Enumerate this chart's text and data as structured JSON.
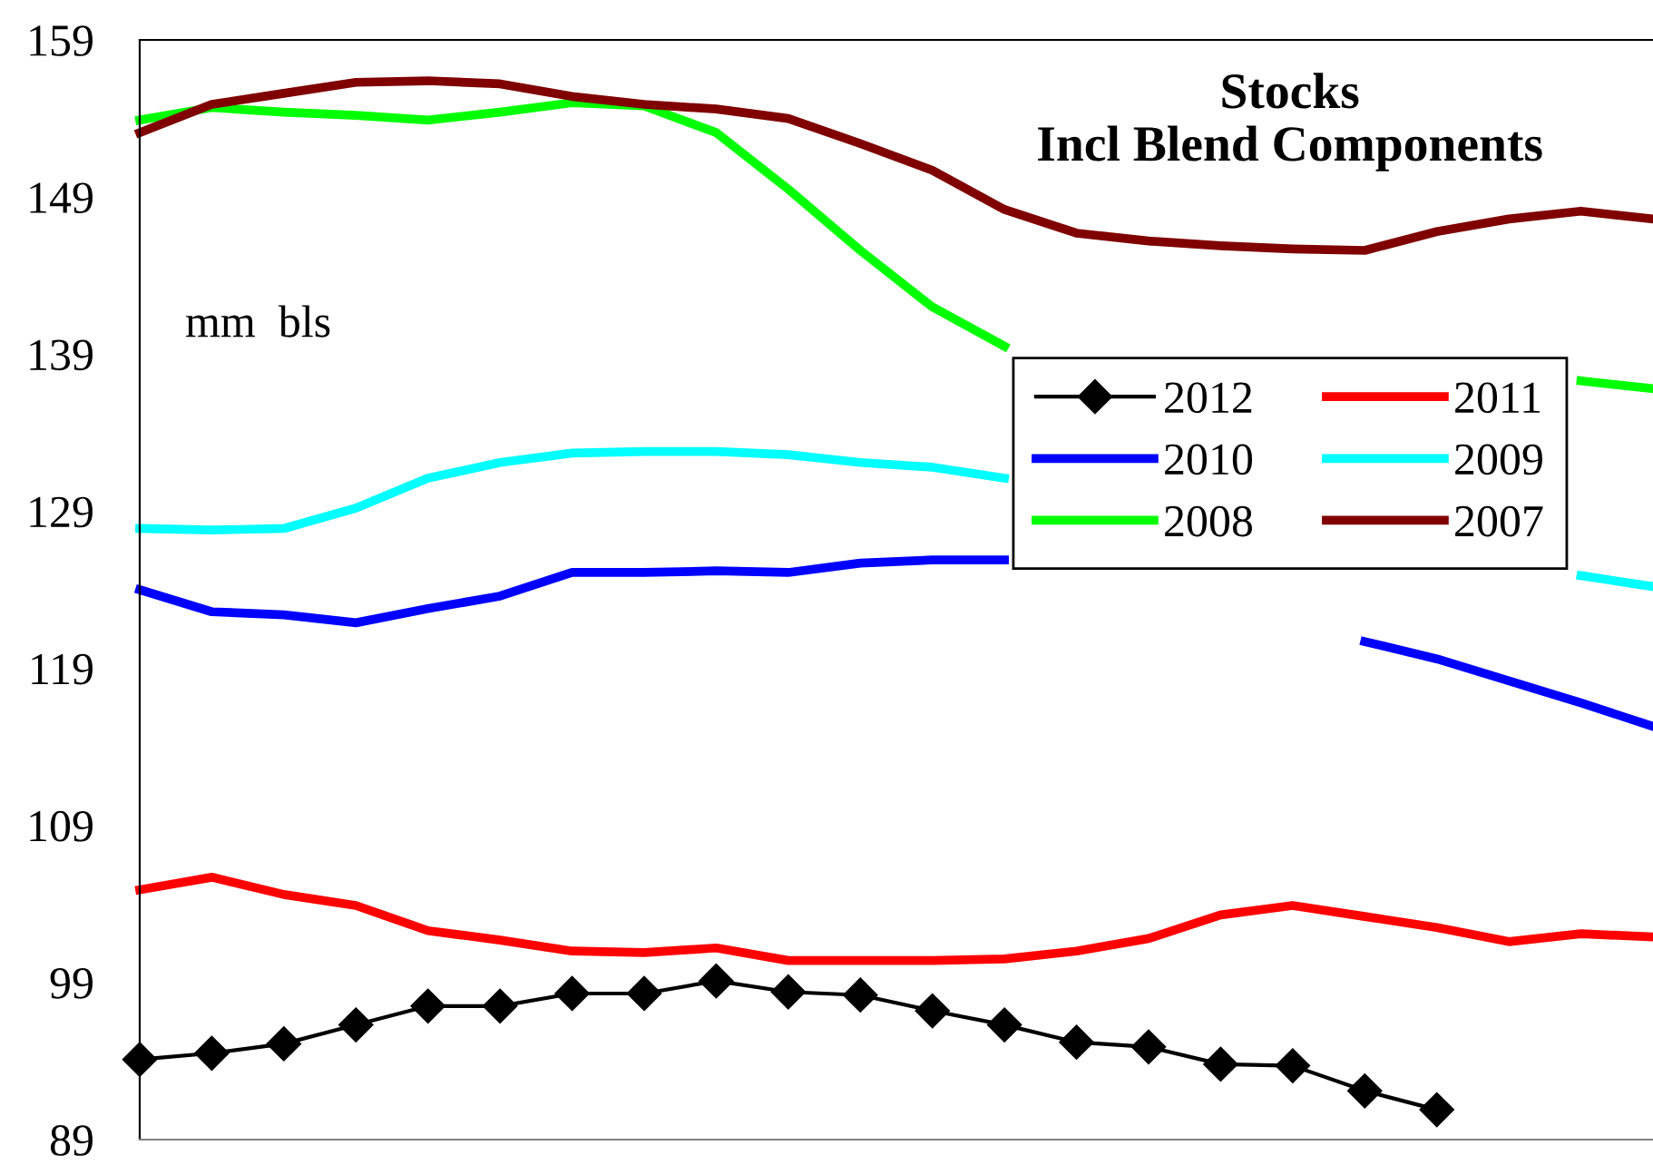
{
  "chart_data": {
    "type": "line",
    "title": "Stocks\nIncl Blend Components",
    "annotations": [
      "mm  bls"
    ],
    "categories": [
      null,
      null,
      null,
      null,
      null,
      null,
      null,
      null,
      null,
      null,
      null,
      null,
      null,
      null,
      null,
      null,
      null,
      null,
      null,
      null,
      null,
      null
    ],
    "ylim": [
      89,
      159
    ],
    "yticks": [
      89,
      99,
      109,
      119,
      129,
      139,
      149,
      159
    ],
    "tick_labels": "y",
    "grid": false,
    "legend": "right",
    "line_style": "solid",
    "series": [
      {
        "name": "2012",
        "color": "#000000",
        "marker": "diamond",
        "values": [
          94.1,
          94.5,
          95.1,
          96.3,
          97.5,
          97.5,
          98.3,
          98.3,
          99.1,
          98.4,
          98.2,
          97.2,
          96.3,
          95.2,
          94.9,
          93.8,
          93.7,
          92.1,
          90.9,
          null,
          null,
          null
        ]
      },
      {
        "name": "2011",
        "color": "#ff0000",
        "values": [
          104.9,
          105.7,
          104.6,
          103.9,
          102.3,
          101.7,
          101.0,
          100.9,
          101.2,
          100.4,
          100.4,
          100.4,
          100.5,
          101.0,
          101.8,
          103.3,
          103.9,
          103.2,
          102.5,
          101.6,
          102.1,
          101.9
        ]
      },
      {
        "name": "2010",
        "color": "#0000ff",
        "values": [
          124.0,
          122.6,
          122.4,
          121.9,
          122.8,
          123.6,
          125.1,
          125.1,
          125.2,
          125.1,
          125.7,
          125.9,
          125.9,
          null,
          null,
          null,
          null,
          120.7,
          119.6,
          118.2,
          116.8,
          115.3
        ]
      },
      {
        "name": "2009",
        "color": "#00ffff",
        "values": [
          127.9,
          127.8,
          127.9,
          129.2,
          131.1,
          132.1,
          132.7,
          132.8,
          132.8,
          132.6,
          132.1,
          131.8,
          131.1,
          null,
          null,
          null,
          null,
          null,
          null,
          null,
          124.9,
          124.2
        ]
      },
      {
        "name": "2008",
        "color": "#00ff00",
        "values": [
          153.9,
          154.7,
          154.4,
          154.2,
          153.9,
          154.4,
          155.0,
          154.8,
          153.1,
          149.5,
          145.6,
          142.0,
          139.5,
          null,
          null,
          null,
          null,
          null,
          null,
          null,
          137.3,
          136.8
        ]
      },
      {
        "name": "2007",
        "color": "#800000",
        "values": [
          153.1,
          154.9,
          155.6,
          156.3,
          156.4,
          156.2,
          155.4,
          154.9,
          154.6,
          154.0,
          152.4,
          150.7,
          148.2,
          146.7,
          146.2,
          145.9,
          145.7,
          145.6,
          146.8,
          147.6,
          148.1,
          147.6
        ]
      }
    ]
  }
}
